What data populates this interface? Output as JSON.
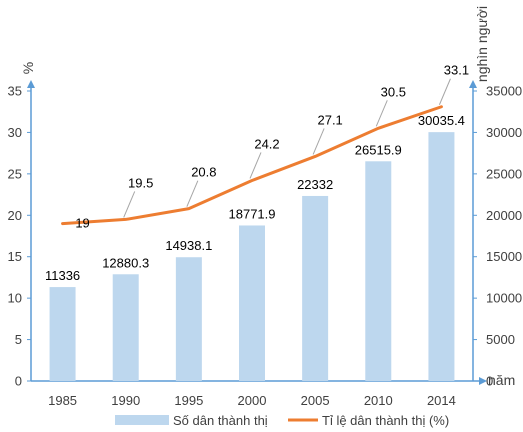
{
  "chart_data": {
    "type": "bar",
    "categories": [
      "1985",
      "1990",
      "1995",
      "2000",
      "2005",
      "2010",
      "2014"
    ],
    "series": [
      {
        "name": "Số dân thành thị",
        "type": "bar",
        "axis": "right",
        "values": [
          11336,
          12880.3,
          14938.1,
          18771.9,
          22332,
          26515.9,
          30035.4
        ],
        "labels": [
          "11336",
          "12880.3",
          "14938.1",
          "18771.9",
          "22332",
          "26515.9",
          "30035.4"
        ],
        "color": "#bdd7ee"
      },
      {
        "name": "Tỉ lệ dân thành thị (%)",
        "type": "line",
        "axis": "left",
        "values": [
          19,
          19.5,
          20.8,
          24.2,
          27.1,
          30.5,
          33.1
        ],
        "labels": [
          "19",
          "19.5",
          "20.8",
          "24.2",
          "27.1",
          "30.5",
          "33.1"
        ],
        "color": "#ed7d31"
      }
    ],
    "left_axis": {
      "unit": "%",
      "ylim": [
        0,
        35
      ],
      "ticks": [
        "0",
        "5",
        "10",
        "15",
        "20",
        "25",
        "30",
        "35"
      ]
    },
    "right_axis": {
      "unit": "nghìn người",
      "ylim": [
        0,
        35000
      ],
      "ticks": [
        "0",
        "5000",
        "10000",
        "15000",
        "20000",
        "25000",
        "30000",
        "35000"
      ]
    },
    "x_axis_unit": "năm",
    "axis_color": "#5b9bd5",
    "grid": false,
    "legend_position": "bottom"
  }
}
